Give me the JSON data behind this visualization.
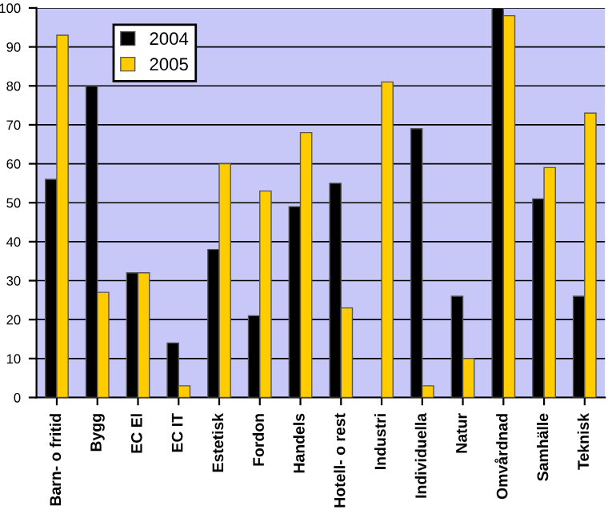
{
  "chart_data": {
    "type": "bar",
    "categories": [
      "Barn- o fritid",
      "Bygg",
      "EC El",
      "EC IT",
      "Estetisk",
      "Fordon",
      "Handels",
      "Hotell- o rest",
      "Industri",
      "Individuella",
      "Natur",
      "Omvårdnad",
      "Samhälle",
      "Teknisk"
    ],
    "series": [
      {
        "name": "2004",
        "color": "#000000",
        "values": [
          56,
          80,
          32,
          14,
          38,
          21,
          49,
          55,
          null,
          69,
          26,
          100,
          51,
          26
        ]
      },
      {
        "name": "2005",
        "color": "#ffcc00",
        "values": [
          93,
          27,
          32,
          3,
          60,
          53,
          68,
          23,
          81,
          3,
          10,
          98,
          59,
          73
        ]
      }
    ],
    "ylim": [
      0,
      100
    ],
    "yticks": [
      0,
      10,
      20,
      30,
      40,
      50,
      60,
      70,
      80,
      90,
      100
    ],
    "grid": "y",
    "legend": "top left"
  }
}
